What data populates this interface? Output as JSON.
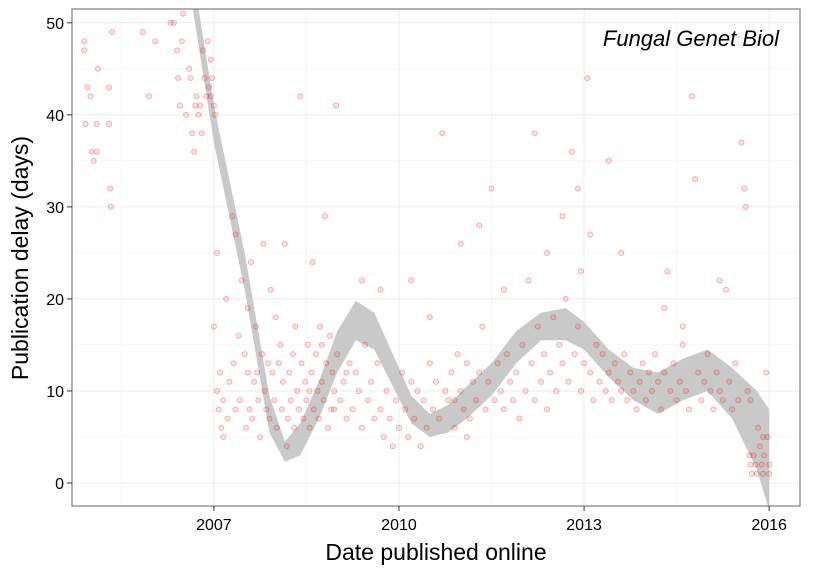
{
  "chart_data": {
    "type": "scatter",
    "annotation": "Fungal Genet Biol",
    "xlabel": "Date published online",
    "ylabel": "Publication delay (days)",
    "x_ticks": [
      {
        "label": "2007",
        "value": 2007
      },
      {
        "label": "2010",
        "value": 2010
      },
      {
        "label": "2013",
        "value": 2013
      },
      {
        "label": "2016",
        "value": 2016
      }
    ],
    "y_ticks": [
      {
        "label": "0",
        "value": 0
      },
      {
        "label": "10",
        "value": 10
      },
      {
        "label": "20",
        "value": 20
      },
      {
        "label": "30",
        "value": 30
      },
      {
        "label": "40",
        "value": 40
      },
      {
        "label": "50",
        "value": 50
      }
    ],
    "xlim": [
      2004.7,
      2016.5
    ],
    "ylim": [
      -2.5,
      51.5
    ],
    "grid": true,
    "point_color": "#e41a1c",
    "ribbon_color": "#c9c9c9",
    "points": [
      [
        2004.9,
        48
      ],
      [
        2004.9,
        47
      ],
      [
        2004.92,
        39
      ],
      [
        2004.95,
        43
      ],
      [
        2005.0,
        42
      ],
      [
        2005.02,
        36
      ],
      [
        2005.05,
        35
      ],
      [
        2005.1,
        39
      ],
      [
        2005.1,
        36
      ],
      [
        2005.12,
        45
      ],
      [
        2005.3,
        43
      ],
      [
        2005.3,
        39
      ],
      [
        2005.32,
        32
      ],
      [
        2005.33,
        30
      ],
      [
        2005.35,
        49
      ],
      [
        2005.85,
        49
      ],
      [
        2005.95,
        42
      ],
      [
        2006.05,
        48
      ],
      [
        2006.3,
        50
      ],
      [
        2006.35,
        50
      ],
      [
        2006.4,
        47
      ],
      [
        2006.42,
        44
      ],
      [
        2006.45,
        41
      ],
      [
        2006.48,
        48
      ],
      [
        2006.5,
        51
      ],
      [
        2006.55,
        40
      ],
      [
        2006.6,
        45
      ],
      [
        2006.62,
        44
      ],
      [
        2006.65,
        38
      ],
      [
        2006.68,
        36
      ],
      [
        2006.7,
        41
      ],
      [
        2006.72,
        42
      ],
      [
        2006.75,
        40
      ],
      [
        2006.78,
        41
      ],
      [
        2006.8,
        38
      ],
      [
        2006.82,
        47
      ],
      [
        2006.85,
        44
      ],
      [
        2006.88,
        42
      ],
      [
        2006.9,
        48
      ],
      [
        2006.92,
        43
      ],
      [
        2006.95,
        46
      ],
      [
        2006.95,
        42
      ],
      [
        2006.97,
        44
      ],
      [
        2007.0,
        41
      ],
      [
        2007.0,
        17
      ],
      [
        2007.02,
        40
      ],
      [
        2007.05,
        25
      ],
      [
        2007.05,
        10
      ],
      [
        2007.08,
        8
      ],
      [
        2007.1,
        12
      ],
      [
        2007.12,
        6
      ],
      [
        2007.15,
        9
      ],
      [
        2007.2,
        20
      ],
      [
        2007.22,
        7
      ],
      [
        2007.25,
        11
      ],
      [
        2007.3,
        29
      ],
      [
        2007.32,
        13
      ],
      [
        2007.35,
        27
      ],
      [
        2007.35,
        8
      ],
      [
        2007.4,
        16
      ],
      [
        2007.42,
        9
      ],
      [
        2007.45,
        22
      ],
      [
        2007.5,
        14
      ],
      [
        2007.52,
        6
      ],
      [
        2007.55,
        19
      ],
      [
        2007.58,
        8
      ],
      [
        2007.6,
        24
      ],
      [
        2007.62,
        7
      ],
      [
        2007.65,
        11
      ],
      [
        2007.68,
        17
      ],
      [
        2007.7,
        12
      ],
      [
        2007.72,
        9
      ],
      [
        2007.75,
        5
      ],
      [
        2007.78,
        14
      ],
      [
        2007.8,
        26
      ],
      [
        2007.82,
        10
      ],
      [
        2007.85,
        8
      ],
      [
        2007.88,
        13
      ],
      [
        2007.9,
        7
      ],
      [
        2007.92,
        21
      ],
      [
        2007.95,
        12
      ],
      [
        2007.98,
        9
      ],
      [
        2008.0,
        18
      ],
      [
        2008.02,
        6
      ],
      [
        2008.05,
        13
      ],
      [
        2008.08,
        15
      ],
      [
        2008.1,
        8
      ],
      [
        2008.12,
        11
      ],
      [
        2008.15,
        26
      ],
      [
        2008.18,
        4
      ],
      [
        2008.2,
        7
      ],
      [
        2008.22,
        12
      ],
      [
        2008.25,
        9
      ],
      [
        2008.28,
        14
      ],
      [
        2008.3,
        6
      ],
      [
        2008.32,
        17
      ],
      [
        2008.35,
        10
      ],
      [
        2008.38,
        8
      ],
      [
        2008.4,
        42
      ],
      [
        2008.42,
        13
      ],
      [
        2008.45,
        7
      ],
      [
        2008.48,
        11
      ],
      [
        2008.5,
        9
      ],
      [
        2008.52,
        15
      ],
      [
        2008.55,
        6
      ],
      [
        2008.58,
        12
      ],
      [
        2008.6,
        24
      ],
      [
        2008.62,
        8
      ],
      [
        2008.65,
        14
      ],
      [
        2008.68,
        10
      ],
      [
        2008.7,
        7
      ],
      [
        2008.72,
        17
      ],
      [
        2008.75,
        11
      ],
      [
        2008.78,
        9
      ],
      [
        2008.8,
        29
      ],
      [
        2008.82,
        13
      ],
      [
        2008.85,
        6
      ],
      [
        2008.88,
        16
      ],
      [
        2008.9,
        8
      ],
      [
        2008.92,
        12
      ],
      [
        2008.95,
        10
      ],
      [
        2008.98,
        41
      ],
      [
        2009.0,
        14
      ],
      [
        2009.05,
        9
      ],
      [
        2009.1,
        11
      ],
      [
        2009.15,
        7
      ],
      [
        2009.2,
        13
      ],
      [
        2009.25,
        8
      ],
      [
        2009.3,
        12
      ],
      [
        2009.35,
        10
      ],
      [
        2009.4,
        6
      ],
      [
        2009.45,
        15
      ],
      [
        2009.5,
        9
      ],
      [
        2009.55,
        11
      ],
      [
        2009.6,
        7
      ],
      [
        2009.65,
        13
      ],
      [
        2009.7,
        8
      ],
      [
        2009.75,
        5
      ],
      [
        2009.8,
        10
      ],
      [
        2009.85,
        7
      ],
      [
        2009.9,
        4
      ],
      [
        2009.95,
        9
      ],
      [
        2010.0,
        6
      ],
      [
        2010.05,
        12
      ],
      [
        2010.1,
        8
      ],
      [
        2010.15,
        5
      ],
      [
        2010.2,
        11
      ],
      [
        2010.25,
        7
      ],
      [
        2010.3,
        10
      ],
      [
        2010.35,
        4
      ],
      [
        2010.4,
        9
      ],
      [
        2010.45,
        6
      ],
      [
        2010.5,
        13
      ],
      [
        2010.55,
        8
      ],
      [
        2010.6,
        11
      ],
      [
        2010.65,
        7
      ],
      [
        2010.7,
        38
      ],
      [
        2010.75,
        10
      ],
      [
        2010.8,
        9
      ],
      [
        2010.85,
        12
      ],
      [
        2010.9,
        6
      ],
      [
        2010.95,
        14
      ],
      [
        2011.0,
        10
      ],
      [
        2011.05,
        8
      ],
      [
        2011.1,
        13
      ],
      [
        2011.15,
        7
      ],
      [
        2011.2,
        11
      ],
      [
        2011.25,
        9
      ],
      [
        2011.3,
        12
      ],
      [
        2011.35,
        17
      ],
      [
        2011.4,
        8
      ],
      [
        2011.45,
        11
      ],
      [
        2011.5,
        32
      ],
      [
        2011.55,
        9
      ],
      [
        2011.6,
        13
      ],
      [
        2011.65,
        10
      ],
      [
        2011.7,
        8
      ],
      [
        2011.75,
        14
      ],
      [
        2011.8,
        11
      ],
      [
        2011.85,
        9
      ],
      [
        2011.9,
        12
      ],
      [
        2011.95,
        7
      ],
      [
        2012.0,
        15
      ],
      [
        2012.05,
        10
      ],
      [
        2012.1,
        22
      ],
      [
        2012.15,
        13
      ],
      [
        2012.2,
        9
      ],
      [
        2012.25,
        17
      ],
      [
        2012.3,
        11
      ],
      [
        2012.35,
        14
      ],
      [
        2012.4,
        8
      ],
      [
        2012.45,
        12
      ],
      [
        2012.5,
        18
      ],
      [
        2012.55,
        10
      ],
      [
        2012.6,
        15
      ],
      [
        2012.65,
        13
      ],
      [
        2012.7,
        20
      ],
      [
        2012.75,
        11
      ],
      [
        2012.8,
        36
      ],
      [
        2012.85,
        14
      ],
      [
        2012.9,
        17
      ],
      [
        2012.95,
        10
      ],
      [
        2013.0,
        13
      ],
      [
        2013.05,
        44
      ],
      [
        2013.1,
        12
      ],
      [
        2013.15,
        9
      ],
      [
        2013.2,
        15
      ],
      [
        2013.25,
        11
      ],
      [
        2013.3,
        14
      ],
      [
        2013.35,
        10
      ],
      [
        2013.4,
        12
      ],
      [
        2013.45,
        9
      ],
      [
        2013.5,
        13
      ],
      [
        2013.55,
        11
      ],
      [
        2013.6,
        10
      ],
      [
        2013.65,
        14
      ],
      [
        2013.7,
        9
      ],
      [
        2013.75,
        12
      ],
      [
        2013.8,
        10
      ],
      [
        2013.85,
        8
      ],
      [
        2013.9,
        11
      ],
      [
        2013.95,
        13
      ],
      [
        2014.0,
        9
      ],
      [
        2014.05,
        12
      ],
      [
        2014.1,
        10
      ],
      [
        2014.15,
        14
      ],
      [
        2014.2,
        11
      ],
      [
        2014.25,
        8
      ],
      [
        2014.3,
        12
      ],
      [
        2014.35,
        23
      ],
      [
        2014.4,
        10
      ],
      [
        2014.45,
        13
      ],
      [
        2014.5,
        9
      ],
      [
        2014.55,
        11
      ],
      [
        2014.6,
        15
      ],
      [
        2014.65,
        10
      ],
      [
        2014.7,
        8
      ],
      [
        2014.75,
        42
      ],
      [
        2014.8,
        33
      ],
      [
        2014.85,
        12
      ],
      [
        2014.9,
        9
      ],
      [
        2014.95,
        11
      ],
      [
        2015.0,
        14
      ],
      [
        2015.05,
        10
      ],
      [
        2015.1,
        8
      ],
      [
        2015.15,
        12
      ],
      [
        2015.2,
        10
      ],
      [
        2015.25,
        9
      ],
      [
        2015.3,
        21
      ],
      [
        2015.35,
        11
      ],
      [
        2015.4,
        8
      ],
      [
        2015.45,
        13
      ],
      [
        2015.5,
        9
      ],
      [
        2015.55,
        37
      ],
      [
        2015.6,
        32
      ],
      [
        2015.62,
        30
      ],
      [
        2015.65,
        10
      ],
      [
        2015.68,
        3
      ],
      [
        2015.7,
        2
      ],
      [
        2015.72,
        1
      ],
      [
        2015.75,
        3
      ],
      [
        2015.78,
        2
      ],
      [
        2015.8,
        1
      ],
      [
        2015.85,
        4
      ],
      [
        2015.88,
        2
      ],
      [
        2015.9,
        1
      ],
      [
        2015.92,
        3
      ],
      [
        2015.95,
        12
      ],
      [
        2015.97,
        5
      ],
      [
        2016.0,
        2
      ],
      [
        2016.0,
        1
      ],
      [
        2015.82,
        6
      ],
      [
        2015.9,
        5
      ],
      [
        2015.7,
        9
      ],
      [
        2011.3,
        28
      ],
      [
        2012.2,
        38
      ],
      [
        2012.65,
        29
      ],
      [
        2013.4,
        35
      ],
      [
        2012.9,
        32
      ],
      [
        2011.0,
        26
      ],
      [
        2010.2,
        22
      ],
      [
        2009.4,
        22
      ],
      [
        2009.7,
        21
      ],
      [
        2010.5,
        18
      ],
      [
        2011.7,
        21
      ],
      [
        2012.4,
        25
      ],
      [
        2013.6,
        25
      ],
      [
        2014.3,
        19
      ],
      [
        2015.2,
        22
      ],
      [
        2014.6,
        17
      ],
      [
        2008.75,
        15
      ],
      [
        2008.55,
        10
      ],
      [
        2008.95,
        8
      ],
      [
        2009.15,
        12
      ],
      [
        2007.55,
        12
      ],
      [
        2007.15,
        5
      ],
      [
        2010.9,
        9
      ],
      [
        2011.1,
        5
      ],
      [
        2012.95,
        23
      ],
      [
        2013.1,
        27
      ]
    ],
    "smooth_band": [
      {
        "x": 2006.6,
        "lo": 54,
        "hi": 58
      },
      {
        "x": 2007.0,
        "lo": 37,
        "hi": 41
      },
      {
        "x": 2007.5,
        "lo": 21,
        "hi": 25
      },
      {
        "x": 2007.9,
        "lo": 5.5,
        "hi": 9.5
      },
      {
        "x": 2008.15,
        "lo": 2.3,
        "hi": 4.5
      },
      {
        "x": 2008.4,
        "lo": 3.0,
        "hi": 6.5
      },
      {
        "x": 2008.7,
        "lo": 7.0,
        "hi": 11.0
      },
      {
        "x": 2009.0,
        "lo": 12.0,
        "hi": 16.5
      },
      {
        "x": 2009.3,
        "lo": 15.5,
        "hi": 19.8
      },
      {
        "x": 2009.6,
        "lo": 14.5,
        "hi": 18.5
      },
      {
        "x": 2009.9,
        "lo": 10.5,
        "hi": 14.0
      },
      {
        "x": 2010.2,
        "lo": 6.5,
        "hi": 9.5
      },
      {
        "x": 2010.5,
        "lo": 5.0,
        "hi": 7.5
      },
      {
        "x": 2010.8,
        "lo": 5.5,
        "hi": 8.5
      },
      {
        "x": 2011.1,
        "lo": 7.0,
        "hi": 10.5
      },
      {
        "x": 2011.5,
        "lo": 9.5,
        "hi": 13.0
      },
      {
        "x": 2011.9,
        "lo": 13.0,
        "hi": 16.5
      },
      {
        "x": 2012.3,
        "lo": 15.5,
        "hi": 18.5
      },
      {
        "x": 2012.7,
        "lo": 15.5,
        "hi": 19.0
      },
      {
        "x": 2013.0,
        "lo": 14.5,
        "hi": 17.5
      },
      {
        "x": 2013.4,
        "lo": 11.5,
        "hi": 14.5
      },
      {
        "x": 2013.8,
        "lo": 9.0,
        "hi": 12.5
      },
      {
        "x": 2014.2,
        "lo": 7.5,
        "hi": 12.0
      },
      {
        "x": 2014.6,
        "lo": 9.0,
        "hi": 13.5
      },
      {
        "x": 2015.0,
        "lo": 10.0,
        "hi": 14.5
      },
      {
        "x": 2015.4,
        "lo": 7.0,
        "hi": 12.5
      },
      {
        "x": 2015.8,
        "lo": 1.5,
        "hi": 10.0
      },
      {
        "x": 2016.0,
        "lo": -3.0,
        "hi": 8.0
      }
    ]
  }
}
